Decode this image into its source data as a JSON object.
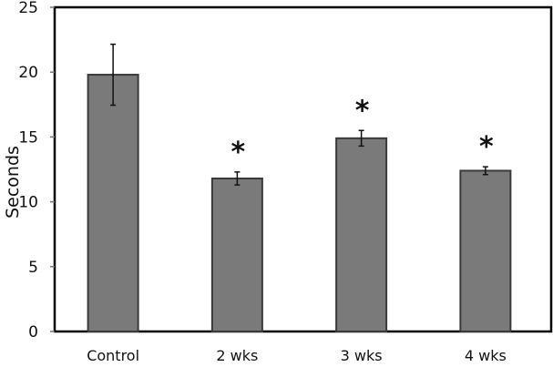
{
  "chart_data": {
    "type": "bar",
    "title": "",
    "xlabel": "",
    "ylabel": "Seconds",
    "ylim": [
      0,
      25
    ],
    "yticks": [
      0,
      5,
      10,
      15,
      20,
      25
    ],
    "categories": [
      "Control",
      "2 wks",
      "3 wks",
      "4 wks"
    ],
    "values": [
      19.8,
      11.8,
      14.9,
      12.4
    ],
    "errors": [
      2.35,
      0.5,
      0.6,
      0.3
    ],
    "significance": [
      "",
      "*",
      "*",
      "*"
    ],
    "grid": false,
    "legend": "none",
    "colors": {
      "bar": "#7a7a7a",
      "bar_edge": "#3a3a3a",
      "axis": "#000000"
    }
  }
}
